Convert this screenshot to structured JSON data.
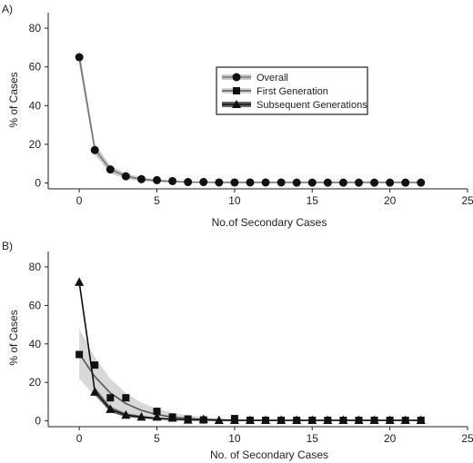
{
  "chart_data": [
    {
      "type": "scatter",
      "panel_label": "A)",
      "xlabel": "No.of Secondary Cases",
      "ylabel": "% of Cases",
      "xlim": [
        -2,
        25
      ],
      "ylim": [
        -3,
        88
      ],
      "xticks": [
        "0",
        "5",
        "10",
        "15",
        "20",
        "25"
      ],
      "xtick_values": [
        0,
        5,
        10,
        15,
        20,
        25
      ],
      "yticks": [
        "0",
        "20",
        "40",
        "60",
        "80"
      ],
      "ytick_values": [
        0,
        20,
        40,
        60,
        80
      ],
      "legend": {
        "placement": "upper-middle",
        "entries": [
          {
            "label": "Overall",
            "marker": "circle"
          },
          {
            "label": "First Generation",
            "marker": "square"
          },
          {
            "label": "Subsequent Generations",
            "marker": "triangle"
          }
        ]
      },
      "series": [
        {
          "name": "Overall",
          "marker": "circle",
          "x": [
            0,
            1,
            2,
            3,
            4,
            5,
            6,
            7,
            8,
            9,
            10,
            11,
            12,
            13,
            14,
            15,
            16,
            17,
            18,
            19,
            20,
            21,
            22
          ],
          "values": [
            65,
            17,
            7,
            3.5,
            2,
            1.5,
            1,
            0.5,
            0.5,
            0.3,
            0.3,
            0.3,
            0.3,
            0.3,
            0.2,
            0.2,
            0.2,
            0.2,
            0.2,
            0.2,
            0.2,
            0.2,
            0.2
          ],
          "fit": [
            65,
            17.5,
            7,
            3.5,
            2,
            1.2,
            0.8,
            0.5,
            0.4,
            0.3,
            0.3,
            0.3,
            0.3,
            0.3,
            0.3,
            0.3,
            0.3,
            0.3,
            0.3,
            0.3,
            0.3,
            0.3,
            0.3
          ],
          "band_width": [
            4,
            2.8,
            2,
            1.4,
            1,
            0.7,
            0.5,
            0.4,
            0.3,
            0.3,
            0.2,
            0.2,
            0.2,
            0.2,
            0.2,
            0.2,
            0.2,
            0.2,
            0.2,
            0.2,
            0.2,
            0.2,
            0.2
          ],
          "band_color": "#c8c8c8",
          "fit_color": "#777777"
        }
      ]
    },
    {
      "type": "scatter",
      "panel_label": "B)",
      "xlabel": "No. of Secondary Cases",
      "ylabel": "% of Cases",
      "xlim": [
        -2,
        25
      ],
      "ylim": [
        -3,
        88
      ],
      "xticks": [
        "0",
        "5",
        "10",
        "15",
        "20",
        "25"
      ],
      "xtick_values": [
        0,
        5,
        10,
        15,
        20,
        25
      ],
      "yticks": [
        "0",
        "20",
        "40",
        "60",
        "80"
      ],
      "ytick_values": [
        0,
        20,
        40,
        60,
        80
      ],
      "series": [
        {
          "name": "First Generation",
          "marker": "square",
          "x": [
            0,
            1,
            2,
            3,
            5,
            6,
            7,
            8,
            10,
            11,
            12,
            13,
            14,
            15,
            16,
            17,
            18,
            19,
            20,
            21,
            22
          ],
          "values": [
            34.5,
            29,
            12,
            12,
            5,
            2,
            1,
            0.5,
            1.2,
            0.3,
            0.3,
            0.3,
            0.3,
            0.3,
            0.3,
            0.3,
            0.3,
            0.3,
            0.3,
            0.3,
            0.3
          ],
          "fit": [
            35,
            23,
            14.5,
            9,
            5.5,
            3.3,
            2,
            1.3,
            0.8,
            0.5,
            0.3,
            0.3,
            0.3,
            0.3,
            0.3,
            0.3,
            0.3,
            0.3,
            0.3,
            0.3,
            0.3,
            0.3,
            0.3
          ],
          "band_width": [
            13,
            10,
            7.5,
            5.5,
            4,
            3,
            2.2,
            1.6,
            1.1,
            0.8,
            0.6,
            0.5,
            0.4,
            0.3,
            0.3,
            0.3,
            0.3,
            0.3,
            0.3,
            0.3,
            0.3,
            0.3,
            0.3
          ],
          "band_color": "#d4d4d4",
          "fit_color": "#555555"
        },
        {
          "name": "Subsequent Generations",
          "marker": "triangle",
          "x": [
            0,
            1,
            2,
            3,
            4,
            5,
            6,
            7,
            8,
            9,
            10,
            11,
            12,
            13,
            14,
            15,
            16,
            17,
            18,
            19,
            20,
            21,
            22
          ],
          "values": [
            72,
            15,
            6,
            3,
            2,
            2,
            1.5,
            0.5,
            0.8,
            0.3,
            0.3,
            0.3,
            0.3,
            0.3,
            0.3,
            0.3,
            0.3,
            0.3,
            0.3,
            0.3,
            0.3,
            0.3,
            0.3
          ],
          "fit": [
            72,
            15.5,
            6,
            3,
            2,
            1.3,
            0.9,
            0.6,
            0.5,
            0.4,
            0.3,
            0.3,
            0.3,
            0.3,
            0.3,
            0.3,
            0.3,
            0.3,
            0.3,
            0.3,
            0.3,
            0.3,
            0.3
          ],
          "band_width": [
            2.5,
            2,
            1.5,
            1,
            0.7,
            0.5,
            0.4,
            0.3,
            0.3,
            0.2,
            0.2,
            0.2,
            0.2,
            0.2,
            0.2,
            0.2,
            0.2,
            0.2,
            0.2,
            0.2,
            0.2,
            0.2,
            0.2
          ],
          "band_color": "#666666",
          "fit_color": "#111111"
        }
      ]
    }
  ]
}
